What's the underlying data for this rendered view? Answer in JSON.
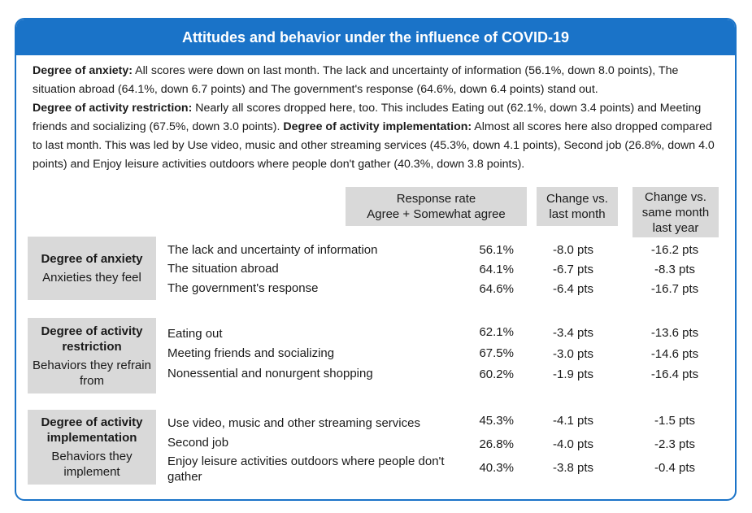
{
  "title": "Attitudes and behavior under the influence of COVID-19",
  "summary": {
    "p1_label": "Degree of anxiety:",
    "p1_text": " All scores were down on last month. The lack and uncertainty of information (56.1%, down 8.0 points), The situation abroad (64.1%, down 6.7 points) and The government's response (64.6%, down 6.4 points) stand out.",
    "p2_label": "Degree of activity restriction:",
    "p2_text": " Nearly all scores dropped here, too. This includes Eating out (62.1%, down 3.4 points) and Meeting friends and socializing (67.5%, down 3.0 points). ",
    "p3_label": "Degree of activity implementation:",
    "p3_text": " Almost all scores here also dropped compared to last month. This was led by Use video, music and other streaming services (45.3%, down 4.1 points), Second job (26.8%, down 4.0 points) and Enjoy leisure activities outdoors where people don't gather (40.3%, down 3.8 points)."
  },
  "headers": {
    "response_l1": "Response rate",
    "response_l2": "Agree + Somewhat agree",
    "lastmonth_l1": "Change vs.",
    "lastmonth_l2": "last month",
    "lastyear_l1": "Change vs.",
    "lastyear_l2": "same month",
    "lastyear_l3": "last year"
  },
  "groups": [
    {
      "title": "Degree of anxiety",
      "subtitle": "Anxieties they feel",
      "rows": [
        {
          "label": "The lack and uncertainty of information",
          "rate": "56.1%",
          "vs_month": "-8.0 pts",
          "vs_year": "-16.2 pts"
        },
        {
          "label": "The situation abroad",
          "rate": "64.1%",
          "vs_month": "-6.7 pts",
          "vs_year": "-8.3 pts"
        },
        {
          "label": "The government's response",
          "rate": "64.6%",
          "vs_month": "-6.4 pts",
          "vs_year": "-16.7 pts"
        }
      ]
    },
    {
      "title": "Degree of activity restriction",
      "subtitle": "Behaviors they refrain from",
      "rows": [
        {
          "label": "Eating out",
          "rate": "62.1%",
          "vs_month": "-3.4 pts",
          "vs_year": "-13.6 pts"
        },
        {
          "label": "Meeting friends and socializing",
          "rate": "67.5%",
          "vs_month": "-3.0 pts",
          "vs_year": "-14.6 pts"
        },
        {
          "label": "Nonessential and nonurgent shopping",
          "rate": "60.2%",
          "vs_month": "-1.9 pts",
          "vs_year": "-16.4 pts"
        }
      ]
    },
    {
      "title": "Degree of activity implementation",
      "subtitle": "Behaviors they implement",
      "rows": [
        {
          "label": "Use video, music and other streaming services",
          "rate": "45.3%",
          "vs_month": "-4.1 pts",
          "vs_year": "-1.5 pts"
        },
        {
          "label": "Second job",
          "rate": "26.8%",
          "vs_month": "-4.0 pts",
          "vs_year": "-2.3 pts"
        },
        {
          "label": "Enjoy leisure activities outdoors where people don't gather",
          "rate": "40.3%",
          "vs_month": "-3.8 pts",
          "vs_year": "-0.4 pts"
        }
      ]
    }
  ]
}
